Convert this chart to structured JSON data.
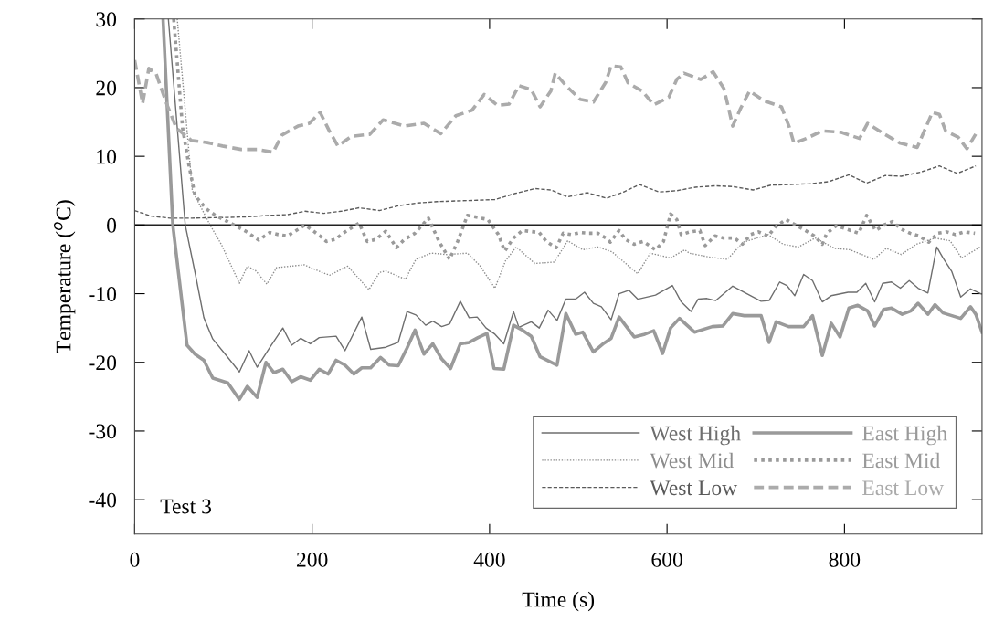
{
  "chart_data": {
    "type": "line",
    "xlabel": "Time (s)",
    "ylabel": "Temperature ($^{o}$C)",
    "xlim": [
      0,
      955
    ],
    "ylim": [
      -45,
      30
    ],
    "xticks": [
      0,
      200,
      400,
      600,
      800
    ],
    "yticks": [
      -40,
      -30,
      -20,
      -10,
      0,
      10,
      20,
      30
    ],
    "grid": false,
    "legend": "bottom right",
    "annotations": [
      "Test 3"
    ],
    "ref_lines": [
      {
        "axis": "y",
        "value": 0,
        "label": null,
        "color": "#222222",
        "line_style": "solid"
      }
    ],
    "series": [
      {
        "name": "West High",
        "color": "#6e6e6e",
        "line_style": "solid",
        "x": [
          38,
          57,
          68,
          78,
          88,
          102,
          118,
          129,
          138,
          153,
          167,
          177,
          187,
          198,
          208,
          227,
          237,
          256,
          266,
          283,
          297,
          307,
          317,
          328,
          336,
          346,
          355,
          367,
          377,
          386,
          396,
          406,
          416,
          427,
          433,
          447,
          456,
          466,
          476,
          486,
          497,
          507,
          517,
          526,
          537,
          546,
          557,
          567,
          577,
          587,
          606,
          616,
          627,
          635,
          645,
          655,
          674,
          706,
          715,
          727,
          735,
          744,
          754,
          764,
          775,
          785,
          804,
          814,
          824,
          834,
          843,
          853,
          863,
          873,
          883,
          894,
          904,
          911,
          921,
          931,
          942,
          955
        ],
        "values": [
          30,
          0,
          -6.9,
          -13.5,
          -16.6,
          -18.8,
          -21.4,
          -18.3,
          -20.7,
          -17.7,
          -15.0,
          -17.5,
          -16.5,
          -17.3,
          -16.4,
          -16.2,
          -18.3,
          -13.4,
          -18.1,
          -17.8,
          -17.1,
          -12.6,
          -13.1,
          -14.6,
          -14.0,
          -14.8,
          -14.4,
          -11.1,
          -13.5,
          -13.4,
          -15.0,
          -15.9,
          -17.3,
          -12.6,
          -14.9,
          -14.1,
          -15.0,
          -12.4,
          -13.9,
          -10.8,
          -10.8,
          -9.8,
          -11.4,
          -11.9,
          -13.8,
          -10.0,
          -9.5,
          -10.8,
          -10.5,
          -10.2,
          -8.8,
          -11.2,
          -12.6,
          -10.8,
          -10.7,
          -11.0,
          -8.9,
          -11.1,
          -11.0,
          -8.3,
          -8.8,
          -10.3,
          -7.2,
          -8.1,
          -11.2,
          -10.3,
          -9.8,
          -9.8,
          -8.5,
          -11.2,
          -8.5,
          -8.3,
          -9.2,
          -8.1,
          -9.2,
          -9.9,
          -3.2,
          -4.8,
          -6.8,
          -10.5,
          -9.3,
          -10.1
        ]
      },
      {
        "name": "West Mid",
        "color": "#8c8c8c",
        "line_style": "dotted",
        "x": [
          48,
          65,
          85,
          98,
          113,
          118,
          127,
          136,
          149,
          160,
          191,
          211,
          220,
          240,
          264,
          276,
          283,
          305,
          317,
          334,
          352,
          375,
          389,
          406,
          418,
          430,
          451,
          473,
          488,
          505,
          522,
          538,
          567,
          581,
          604,
          620,
          625,
          649,
          668,
          686,
          714,
          731,
          748,
          767,
          789,
          806,
          833,
          847,
          864,
          881,
          902,
          919,
          932,
          953
        ],
        "values": [
          30,
          5,
          0,
          -2.9,
          -7.1,
          -8.5,
          -6.0,
          -6.6,
          -8.6,
          -6.2,
          -5.8,
          -6.9,
          -7.3,
          -6.0,
          -9.4,
          -6.9,
          -6.7,
          -7.9,
          -5.0,
          -4.1,
          -4.3,
          -4.1,
          -5.9,
          -9.2,
          -5.2,
          -3.2,
          -5.6,
          -5.4,
          -2.3,
          -3.6,
          -3.2,
          -3.9,
          -7.1,
          -4.1,
          -4.8,
          -3.6,
          -4.1,
          -4.7,
          -5.0,
          -2.5,
          -1.4,
          -2.8,
          -3.2,
          -1.9,
          -3.4,
          -3.6,
          -5.0,
          -3.4,
          -4.3,
          -2.8,
          -1.9,
          -2.3,
          -4.8,
          -3.2
        ]
      },
      {
        "name": "West Low",
        "color": "#5a5a5a",
        "line_style": "dashed",
        "x": [
          0,
          18,
          40,
          65,
          105,
          129,
          152,
          172,
          192,
          213,
          233,
          253,
          276,
          297,
          319,
          341,
          362,
          386,
          406,
          429,
          451,
          469,
          488,
          510,
          532,
          551,
          569,
          591,
          611,
          632,
          654,
          674,
          697,
          717,
          739,
          761,
          782,
          805,
          825,
          846,
          864,
          886,
          907,
          927,
          948
        ],
        "values": [
          2.1,
          1.3,
          1.0,
          1.0,
          1.1,
          1.2,
          1.4,
          1.5,
          2.0,
          1.7,
          2.0,
          2.5,
          2.1,
          2.8,
          3.2,
          3.4,
          3.5,
          3.6,
          3.7,
          4.6,
          5.3,
          5.1,
          4.1,
          4.7,
          3.9,
          4.8,
          5.9,
          4.8,
          5.0,
          5.5,
          5.7,
          5.6,
          5.1,
          5.8,
          5.9,
          6.0,
          6.3,
          7.3,
          6.1,
          7.2,
          7.1,
          7.7,
          8.6,
          7.5,
          8.6
        ]
      },
      {
        "name": "East High",
        "color": "#9a9a9a",
        "line_style": "solid",
        "x": [
          32,
          43,
          59,
          68,
          78,
          88,
          105,
          118,
          127,
          138,
          148,
          157,
          167,
          177,
          187,
          198,
          208,
          218,
          227,
          237,
          247,
          256,
          266,
          277,
          287,
          297,
          307,
          316,
          326,
          336,
          346,
          356,
          367,
          377,
          387,
          397,
          405,
          416,
          427,
          437,
          447,
          457,
          476,
          486,
          497,
          505,
          517,
          529,
          537,
          546,
          563,
          575,
          585,
          595,
          604,
          614,
          631,
          651,
          663,
          674,
          687,
          706,
          715,
          723,
          737,
          754,
          764,
          775,
          785,
          795,
          805,
          815,
          826,
          834,
          844,
          853,
          865,
          875,
          883,
          894,
          902,
          911,
          921,
          931,
          942,
          948,
          955
        ],
        "values": [
          30,
          0,
          -17.5,
          -18.8,
          -19.7,
          -22.3,
          -23.0,
          -25.4,
          -23.5,
          -25.1,
          -20.0,
          -21.5,
          -21.0,
          -22.8,
          -22.1,
          -22.6,
          -21.0,
          -21.7,
          -19.7,
          -20.4,
          -21.7,
          -20.8,
          -20.8,
          -19.3,
          -20.4,
          -20.5,
          -17.9,
          -15.3,
          -18.8,
          -17.3,
          -19.5,
          -20.9,
          -17.3,
          -17.1,
          -16.4,
          -15.8,
          -20.9,
          -21.0,
          -14.6,
          -15.3,
          -16.2,
          -19.2,
          -20.4,
          -12.9,
          -15.9,
          -15.6,
          -18.5,
          -17.2,
          -16.5,
          -13.4,
          -16.3,
          -15.9,
          -15.4,
          -18.7,
          -15.0,
          -13.6,
          -15.6,
          -14.8,
          -14.7,
          -12.9,
          -13.2,
          -13.2,
          -17.1,
          -14.1,
          -14.8,
          -14.8,
          -13.2,
          -19.0,
          -14.3,
          -16.3,
          -12.1,
          -11.7,
          -12.5,
          -14.7,
          -12.3,
          -12.1,
          -13.0,
          -12.5,
          -11.4,
          -13.0,
          -11.6,
          -12.8,
          -13.2,
          -13.6,
          -11.9,
          -13.0,
          -15.6
        ]
      },
      {
        "name": "East Mid",
        "color": "#9a9a9a",
        "line_style": "dotted",
        "x": [
          44,
          54,
          61,
          68,
          81,
          91,
          112,
          125,
          140,
          152,
          162,
          172,
          181,
          192,
          209,
          216,
          226,
          236,
          253,
          262,
          272,
          283,
          295,
          304,
          316,
          331,
          343,
          355,
          364,
          375,
          398,
          410,
          417,
          427,
          437,
          456,
          464,
          475,
          483,
          492,
          502,
          512,
          522,
          531,
          536,
          546,
          553,
          563,
          573,
          587,
          596,
          604,
          611,
          616,
          626,
          637,
          643,
          654,
          664,
          676,
          685,
          694,
          703,
          714,
          722,
          734,
          756,
          766,
          775,
          780,
          791,
          816,
          825,
          835,
          846,
          854,
          864,
          874,
          884,
          895,
          905,
          915,
          925,
          935,
          947
        ],
        "values": [
          30,
          14.1,
          8.8,
          4.3,
          2.3,
          1.4,
          0,
          -0.9,
          -2.2,
          -1.1,
          -1.4,
          -1.6,
          -0.9,
          0,
          -1.6,
          -2.4,
          -2.1,
          -1.1,
          0.3,
          -2.4,
          -2.1,
          -0.9,
          -3.3,
          -2.1,
          -1.2,
          1.0,
          -2.4,
          -5.0,
          -2.4,
          1.4,
          0.8,
          -1.4,
          -3.8,
          -1.9,
          -0.8,
          -1.1,
          -2.4,
          -3.3,
          -1.2,
          -1.4,
          -1.1,
          -1.2,
          -1.2,
          -1.9,
          -2.5,
          -0.8,
          -2.1,
          -2.8,
          -2.4,
          -3.6,
          -2.4,
          1.6,
          0.8,
          -1.4,
          -1.0,
          -0.8,
          -3.0,
          -1.6,
          -1.9,
          -1.9,
          -2.8,
          -1.4,
          -1.0,
          -1.6,
          -0.3,
          0.8,
          -0.8,
          -1.6,
          -2.8,
          -1.2,
          -0.1,
          -1.2,
          1.4,
          -0.8,
          0.1,
          0.5,
          -0.6,
          -1.2,
          -1.6,
          -2.5,
          -1.2,
          -1.0,
          -1.4,
          -1.0,
          -1.2
        ]
      },
      {
        "name": "East Low",
        "color": "#ababab",
        "line_style": "dashed",
        "x": [
          0,
          9,
          16,
          24,
          35,
          47,
          64,
          82,
          99,
          120,
          138,
          156,
          166,
          184,
          197,
          209,
          219,
          229,
          244,
          265,
          280,
          304,
          326,
          345,
          362,
          380,
          394,
          409,
          422,
          433,
          447,
          457,
          469,
          474,
          486,
          502,
          517,
          531,
          537,
          548,
          556,
          572,
          585,
          602,
          611,
          619,
          638,
          652,
          664,
          669,
          674,
          683,
          693,
          709,
          729,
          738,
          743,
          757,
          775,
          796,
          817,
          826,
          844,
          863,
          882,
          890,
          899,
          907,
          914,
          928,
          938,
          950
        ],
        "values": [
          24,
          17.7,
          22.8,
          22.1,
          18,
          14.1,
          12.3,
          12.0,
          11.5,
          11.0,
          11.0,
          10.6,
          13.1,
          14.4,
          14.8,
          16.4,
          13.8,
          11.5,
          12.9,
          13.2,
          15.3,
          14.4,
          14.8,
          13.3,
          15.9,
          16.7,
          19.0,
          17.4,
          17.6,
          20.3,
          19.7,
          17.2,
          19.5,
          22.1,
          20.3,
          18.3,
          17.9,
          20.8,
          23.2,
          23.0,
          20.7,
          19.5,
          17.5,
          18.6,
          21.2,
          22.1,
          21.2,
          22.3,
          19.9,
          17.2,
          14.4,
          17.0,
          19.5,
          18.1,
          17.2,
          14.2,
          11.9,
          12.6,
          13.7,
          13.5,
          12.6,
          14.8,
          13.3,
          11.9,
          11.3,
          13.7,
          16.4,
          16.1,
          13.7,
          12.8,
          11.1,
          13.7
        ]
      }
    ]
  }
}
